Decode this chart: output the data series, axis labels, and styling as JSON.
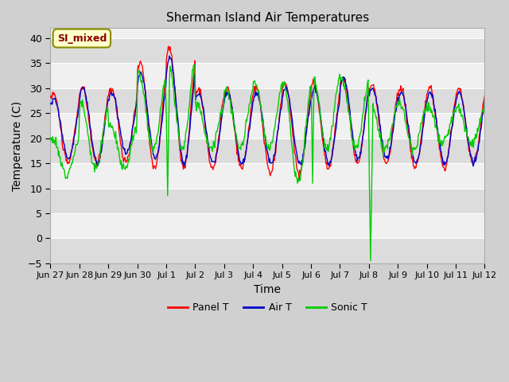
{
  "title": "Sherman Island Air Temperatures",
  "xlabel": "Time",
  "ylabel": "Temperature (C)",
  "ylim": [
    -5,
    42
  ],
  "yticks": [
    -5,
    0,
    5,
    10,
    15,
    20,
    25,
    30,
    35,
    40
  ],
  "annotation_text": "SI_mixed",
  "annotation_color": "#8b0000",
  "annotation_bg": "#ffffcc",
  "annotation_border": "#8b8b00",
  "line_colors": {
    "panel": "#ff0000",
    "air": "#0000cc",
    "sonic": "#00cc00"
  },
  "legend_labels": [
    "Panel T",
    "Air T",
    "Sonic T"
  ],
  "fig_bg": "#d0d0d0",
  "plot_bg_light": "#f0f0f0",
  "plot_bg_dark": "#dcdcdc",
  "tick_labels": [
    "Jun 27",
    "Jun 28",
    "Jun 29",
    "Jun 30",
    "Jul 1",
    "Jul 2",
    "Jul 3",
    "Jul 4",
    "Jul 5",
    "Jul 6",
    "Jul 7",
    "Jul 8",
    "Jul 9",
    "Jul 10",
    "Jul 11",
    "Jul 12"
  ],
  "num_ticks": 16
}
